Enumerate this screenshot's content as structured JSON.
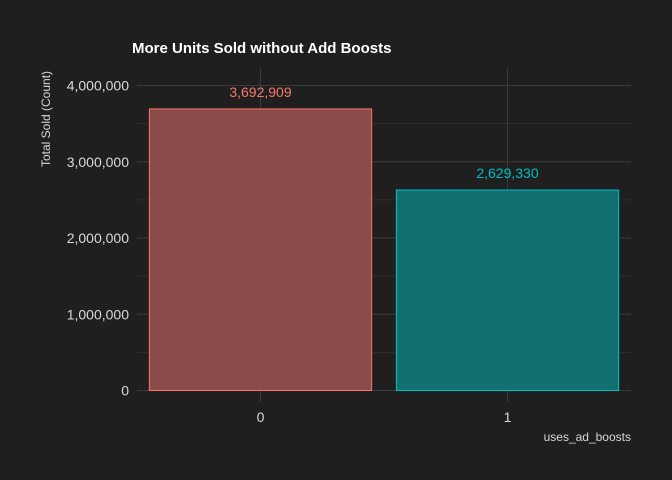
{
  "chart_data": {
    "type": "bar",
    "title": "More Units Sold without Add Boosts",
    "xlabel": "uses_ad_boosts",
    "ylabel": "Total Sold (Count)",
    "categories": [
      "0",
      "1"
    ],
    "values": [
      3692909,
      2629330
    ],
    "value_labels": [
      "3,692,909",
      "2,629,330"
    ],
    "ylim": [
      0,
      4200000
    ],
    "yticks": [
      0,
      1000000,
      2000000,
      3000000,
      4000000
    ],
    "ytick_labels": [
      "0",
      "1,000,000",
      "2,000,000",
      "3,000,000",
      "4,000,000"
    ],
    "grid": true,
    "legend": "none",
    "colors": {
      "background": "#1f1f1f",
      "grid_major": "#3b3b3b",
      "grid_minor": "#2e2e2e",
      "title": "#ffffff",
      "axis_text": "#d9d9d9",
      "bar_fills": [
        "#8b4b48",
        "#127070"
      ],
      "bar_strokes": [
        "#f8766d",
        "#00bfc4"
      ],
      "label_colors": [
        "#f8766d",
        "#00bfc4"
      ]
    }
  }
}
